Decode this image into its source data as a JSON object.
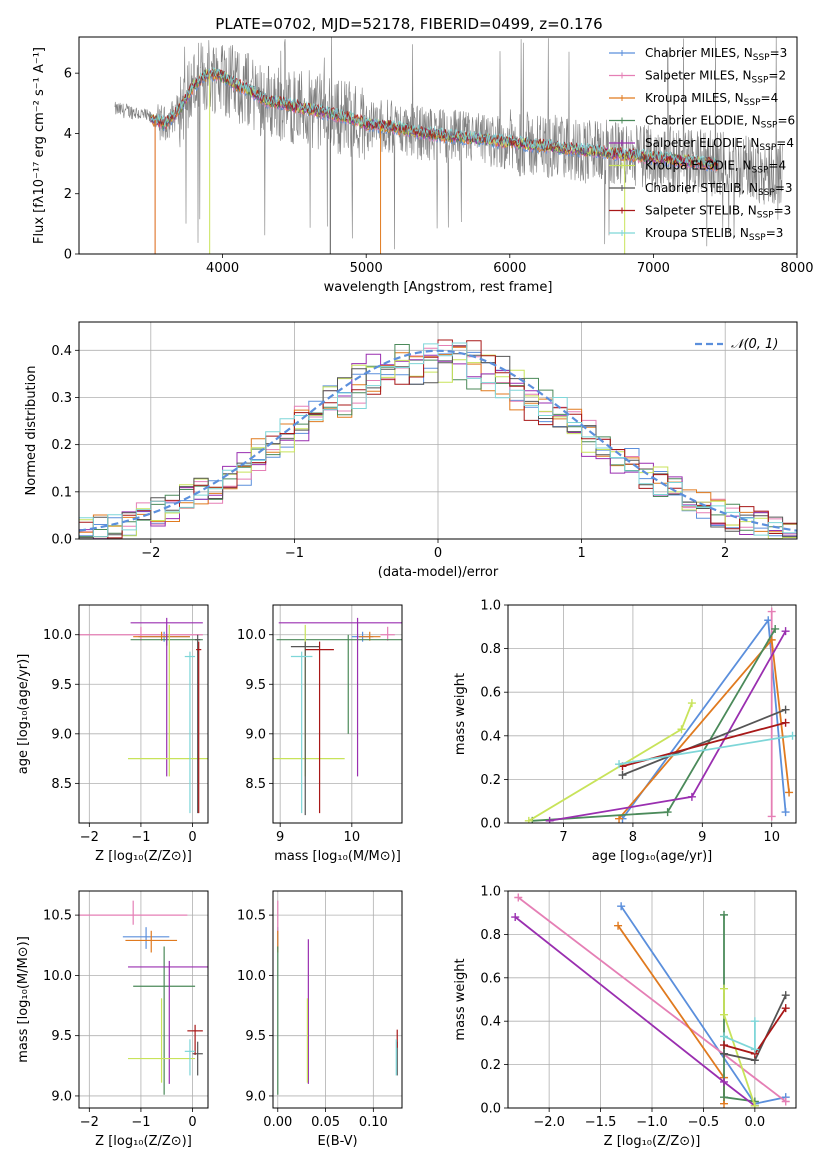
{
  "figure_title": "PLATE=0702, MJD=52178, FIBERID=0499, z=0.176",
  "models": [
    {
      "name": "Chabrier MILES",
      "nssp": "3",
      "color": "#5b8fdc"
    },
    {
      "name": "Salpeter MILES",
      "nssp": "2",
      "color": "#e57fb5"
    },
    {
      "name": "Kroupa MILES",
      "nssp": "4",
      "color": "#e07a1f"
    },
    {
      "name": "Chabrier ELODIE",
      "nssp": "6",
      "color": "#4b8a5a"
    },
    {
      "name": "Salpeter ELODIE",
      "nssp": "4",
      "color": "#9a2fb0"
    },
    {
      "name": "Kroupa ELODIE",
      "nssp": "4",
      "color": "#c8e35a"
    },
    {
      "name": "Chabrier STELIB",
      "nssp": "3",
      "color": "#555555"
    },
    {
      "name": "Salpeter STELIB",
      "nssp": "3",
      "color": "#a81818"
    },
    {
      "name": "Kroupa STELIB",
      "nssp": "3",
      "color": "#7ed6d8"
    }
  ],
  "chart_data": [
    {
      "id": "spectrum",
      "type": "line",
      "xlabel": "wavelength [Angstrom, rest frame]",
      "ylabel": "Flux [fλ10⁻¹⁷ erg cm⁻² s⁻¹ A⁻¹]",
      "xlim": [
        3000,
        8000
      ],
      "ylim": [
        0,
        7.2
      ],
      "xticks": [
        4000,
        5000,
        6000,
        7000,
        8000
      ],
      "yticks": [
        0,
        2,
        4,
        6
      ],
      "observed_color": "#808080",
      "continuum": {
        "x": [
          3250,
          3400,
          3500,
          3600,
          3700,
          3800,
          3900,
          4000,
          4100,
          4200,
          4300,
          4400,
          4500,
          4700,
          4900,
          5000,
          5200,
          5400,
          5600,
          5800,
          6000,
          6200,
          6400,
          6600,
          6800,
          7000,
          7200,
          7400,
          7600,
          7800
        ],
        "y": [
          4.8,
          4.7,
          4.5,
          4.3,
          4.8,
          5.6,
          6.0,
          5.9,
          5.6,
          5.4,
          5.1,
          5.0,
          4.9,
          4.7,
          4.5,
          4.3,
          4.2,
          4.0,
          3.9,
          3.8,
          3.7,
          3.6,
          3.5,
          3.4,
          3.3,
          3.2,
          3.1,
          3.0,
          2.9,
          2.7
        ]
      },
      "observed_range": [
        3250,
        7900
      ],
      "model_range": [
        3500,
        7450
      ]
    },
    {
      "id": "residuals",
      "type": "histogram",
      "xlabel": "(data-model)/error",
      "ylabel": "Normed distribution",
      "xlim": [
        -2.5,
        2.5
      ],
      "ylim": [
        0,
        0.46
      ],
      "xticks": [
        -2,
        -1,
        0,
        1,
        2
      ],
      "yticks": [
        0.0,
        0.1,
        0.2,
        0.3,
        0.4
      ],
      "bin_width": 0.1,
      "reference_label": "𝒩(0, 1)",
      "reference_color": "#5b8fdc"
    },
    {
      "id": "age_vs_Z",
      "type": "errorbar",
      "xlabel": "Z [log₁₀(Z/Z⊙)]",
      "ylabel": "age  [log₁₀(age/yr)]",
      "xlim": [
        -2.2,
        0.3
      ],
      "ylim": [
        8.1,
        10.3
      ],
      "xticks": [
        -2,
        -1,
        0
      ],
      "yticks": [
        8.5,
        9.0,
        9.5,
        10.0
      ],
      "points": [
        {
          "m": 0,
          "x": -0.55,
          "xerr": 0.5,
          "y": 9.98,
          "ylo": 0.05,
          "yhi": 0.05
        },
        {
          "m": 1,
          "x": -1.0,
          "xerr": 1.2,
          "y": 10.0,
          "ylo": 0.06,
          "yhi": 0.08
        },
        {
          "m": 2,
          "x": -0.6,
          "xerr": 0.55,
          "y": 9.98,
          "ylo": 0.04,
          "yhi": 0.05
        },
        {
          "m": 3,
          "x": -0.5,
          "xerr": 0.7,
          "y": 9.95,
          "ylo": 0.06,
          "yhi": 0.05
        },
        {
          "m": 4,
          "x": -0.5,
          "xerr": 0.7,
          "y": 10.12,
          "ylo": 1.55,
          "yhi": 0.05
        },
        {
          "m": 5,
          "x": -0.45,
          "xerr": 0.8,
          "y": 8.75,
          "ylo": 0.18,
          "yhi": 1.35
        },
        {
          "m": 6,
          "x": 0.1,
          "xerr": 0.05,
          "y": 9.95,
          "ylo": 1.75,
          "yhi": 0.05
        },
        {
          "m": 7,
          "x": 0.12,
          "xerr": 0.05,
          "y": 9.85,
          "ylo": 1.65,
          "yhi": 0.08
        },
        {
          "m": 8,
          "x": -0.05,
          "xerr": 0.1,
          "y": 9.78,
          "ylo": 1.58,
          "yhi": 0.05
        }
      ]
    },
    {
      "id": "age_vs_mass",
      "type": "errorbar",
      "xlabel": "mass [log₁₀(M/M⊙)]",
      "ylabel": "",
      "xlim": [
        8.9,
        10.7
      ],
      "ylim": [
        8.1,
        10.3
      ],
      "xticks": [
        9,
        10
      ],
      "yticks": [
        8.5,
        9.0,
        9.5,
        10.0
      ],
      "points": [
        {
          "m": 0,
          "x": 10.15,
          "xerr": 0.15,
          "y": 9.98,
          "ylo": 0.05,
          "yhi": 0.05
        },
        {
          "m": 1,
          "x": 10.5,
          "xerr": 0.1,
          "y": 10.0,
          "ylo": 0.06,
          "yhi": 0.08
        },
        {
          "m": 2,
          "x": 10.25,
          "xerr": 0.15,
          "y": 9.98,
          "ylo": 0.04,
          "yhi": 0.05
        },
        {
          "m": 3,
          "x": 9.95,
          "xerr": 1.0,
          "y": 9.95,
          "ylo": 0.95,
          "yhi": 0.05
        },
        {
          "m": 4,
          "x": 10.08,
          "xerr": 1.1,
          "y": 10.12,
          "ylo": 1.55,
          "yhi": 0.05
        },
        {
          "m": 5,
          "x": 9.35,
          "xerr": 0.55,
          "y": 8.75,
          "ylo": 0.18,
          "yhi": 1.35
        },
        {
          "m": 6,
          "x": 9.35,
          "xerr": 0.2,
          "y": 9.88,
          "ylo": 1.7,
          "yhi": 0.05
        },
        {
          "m": 7,
          "x": 9.55,
          "xerr": 0.2,
          "y": 9.85,
          "ylo": 1.65,
          "yhi": 0.08
        },
        {
          "m": 8,
          "x": 9.3,
          "xerr": 0.15,
          "y": 9.78,
          "ylo": 1.58,
          "yhi": 0.05
        }
      ]
    },
    {
      "id": "weight_vs_age",
      "type": "line",
      "xlabel": "age  [log₁₀(age/yr)]",
      "ylabel": "mass weight",
      "xlim": [
        6.2,
        10.35
      ],
      "ylim": [
        0,
        1
      ],
      "xticks": [
        7,
        8,
        9,
        10
      ],
      "yticks": [
        0.0,
        0.2,
        0.4,
        0.6,
        0.8,
        1.0
      ],
      "series": [
        {
          "m": 0,
          "x": [
            10.2,
            9.95,
            7.85
          ],
          "y": [
            0.05,
            0.93,
            0.02
          ]
        },
        {
          "m": 1,
          "x": [
            10.0,
            10.0
          ],
          "y": [
            0.03,
            0.97
          ]
        },
        {
          "m": 2,
          "x": [
            10.25,
            10.0,
            7.8
          ],
          "y": [
            0.14,
            0.84,
            0.02
          ]
        },
        {
          "m": 3,
          "x": [
            10.05,
            8.5,
            6.55
          ],
          "y": [
            0.89,
            0.05,
            0.01
          ]
        },
        {
          "m": 4,
          "x": [
            10.2,
            8.85,
            6.8
          ],
          "y": [
            0.88,
            0.12,
            0.01
          ]
        },
        {
          "m": 5,
          "x": [
            8.85,
            8.7,
            6.5
          ],
          "y": [
            0.55,
            0.43,
            0.01
          ]
        },
        {
          "m": 6,
          "x": [
            10.2,
            7.85
          ],
          "y": [
            0.52,
            0.22
          ]
        },
        {
          "m": 7,
          "x": [
            10.2,
            7.85
          ],
          "y": [
            0.46,
            0.26
          ]
        },
        {
          "m": 8,
          "x": [
            10.3,
            7.8
          ],
          "y": [
            0.4,
            0.27
          ]
        }
      ]
    },
    {
      "id": "mass_vs_Z",
      "type": "errorbar",
      "xlabel": "Z [log₁₀(Z/Z⊙)]",
      "ylabel": "mass [log₁₀(M/M⊙)]",
      "xlim": [
        -2.2,
        0.3
      ],
      "ylim": [
        8.9,
        10.7
      ],
      "xticks": [
        -2,
        -1,
        0
      ],
      "yticks": [
        9.0,
        9.5,
        10.0,
        10.5
      ],
      "points": [
        {
          "m": 0,
          "x": -0.9,
          "xerr": 0.45,
          "y": 10.32,
          "ylo": 0.1,
          "yhi": 0.08
        },
        {
          "m": 1,
          "x": -1.15,
          "xerr": 1.05,
          "y": 10.5,
          "ylo": 0.08,
          "yhi": 0.12
        },
        {
          "m": 2,
          "x": -0.8,
          "xerr": 0.5,
          "y": 10.29,
          "ylo": 0.1,
          "yhi": 0.08
        },
        {
          "m": 3,
          "x": -0.55,
          "xerr": 0.6,
          "y": 9.91,
          "ylo": 0.9,
          "yhi": 0.33
        },
        {
          "m": 4,
          "x": -0.45,
          "xerr": 0.8,
          "y": 10.07,
          "ylo": 0.97,
          "yhi": 0.05
        },
        {
          "m": 5,
          "x": -0.6,
          "xerr": 0.65,
          "y": 9.31,
          "ylo": 0.2,
          "yhi": 0.5
        },
        {
          "m": 6,
          "x": 0.1,
          "xerr": 0.1,
          "y": 9.35,
          "ylo": 0.18,
          "yhi": 0.1
        },
        {
          "m": 7,
          "x": 0.05,
          "xerr": 0.15,
          "y": 9.54,
          "ylo": 0.2,
          "yhi": 0.05
        },
        {
          "m": 8,
          "x": -0.05,
          "xerr": 0.1,
          "y": 9.37,
          "ylo": 0.2,
          "yhi": 0.1
        }
      ]
    },
    {
      "id": "mass_vs_EBV",
      "type": "errorbar",
      "xlabel": "E(B-V)",
      "ylabel": "",
      "xlim": [
        -0.005,
        0.13
      ],
      "ylim": [
        8.9,
        10.7
      ],
      "xticks": [
        0.0,
        0.05,
        0.1
      ],
      "xticklabels": [
        "0.00",
        "0.05",
        "0.10"
      ],
      "yticks": [
        9.0,
        9.5,
        10.0,
        10.5
      ],
      "points": [
        {
          "m": 0,
          "x": 0.0,
          "xerr": 0,
          "y": 10.32,
          "ylo": 0.1,
          "yhi": 0.08
        },
        {
          "m": 1,
          "x": 0.0,
          "xerr": 0,
          "y": 10.5,
          "ylo": 0.15,
          "yhi": 0.12
        },
        {
          "m": 2,
          "x": 0.0,
          "xerr": 0,
          "y": 10.29,
          "ylo": 0.1,
          "yhi": 0.08
        },
        {
          "m": 3,
          "x": 0.0,
          "xerr": 0,
          "y": 9.91,
          "ylo": 0.9,
          "yhi": 0.33
        },
        {
          "m": 4,
          "x": 0.032,
          "xerr": 0,
          "y": 10.07,
          "ylo": 0.97,
          "yhi": 0.23
        },
        {
          "m": 5,
          "x": 0.031,
          "xerr": 0,
          "y": 9.31,
          "ylo": 0.2,
          "yhi": 0.5
        },
        {
          "m": 6,
          "x": 0.125,
          "xerr": 0,
          "y": 9.35,
          "ylo": 0.18,
          "yhi": 0.1
        },
        {
          "m": 7,
          "x": 0.125,
          "xerr": 0,
          "y": 9.5,
          "ylo": 0.1,
          "yhi": 0.05
        },
        {
          "m": 8,
          "x": 0.124,
          "xerr": 0,
          "y": 9.37,
          "ylo": 0.2,
          "yhi": 0.1
        }
      ]
    },
    {
      "id": "weight_vs_Z",
      "type": "line",
      "xlabel": "Z [log₁₀(Z/Z⊙)]",
      "ylabel": "mass weight",
      "xlim": [
        -2.4,
        0.4
      ],
      "ylim": [
        0,
        1
      ],
      "xticks": [
        -2.0,
        -1.5,
        -1.0,
        -0.5,
        0.0
      ],
      "yticks": [
        0.0,
        0.2,
        0.4,
        0.6,
        0.8,
        1.0
      ],
      "series": [
        {
          "m": 0,
          "x": [
            -1.3,
            0.0,
            0.3
          ],
          "y": [
            0.93,
            0.02,
            0.05
          ]
        },
        {
          "m": 1,
          "x": [
            -2.3,
            0.3
          ],
          "y": [
            0.97,
            0.03
          ]
        },
        {
          "m": 2,
          "x": [
            -1.33,
            -0.3,
            -0.3
          ],
          "y": [
            0.84,
            0.14,
            0.02
          ]
        },
        {
          "m": 3,
          "x": [
            -0.3,
            -0.3,
            0.0
          ],
          "y": [
            0.89,
            0.05,
            0.03
          ]
        },
        {
          "m": 4,
          "x": [
            -2.33,
            -0.3,
            0.0
          ],
          "y": [
            0.88,
            0.12,
            0.01
          ]
        },
        {
          "m": 5,
          "x": [
            -0.3,
            -0.3,
            0.0
          ],
          "y": [
            0.55,
            0.43,
            0.01
          ]
        },
        {
          "m": 6,
          "x": [
            0.3,
            0.0,
            -0.3
          ],
          "y": [
            0.52,
            0.22,
            0.25
          ]
        },
        {
          "m": 7,
          "x": [
            0.3,
            0.0,
            -0.3
          ],
          "y": [
            0.46,
            0.25,
            0.29
          ]
        },
        {
          "m": 8,
          "x": [
            0.0,
            0.0,
            -0.3
          ],
          "y": [
            0.4,
            0.27,
            0.33
          ]
        }
      ]
    }
  ]
}
